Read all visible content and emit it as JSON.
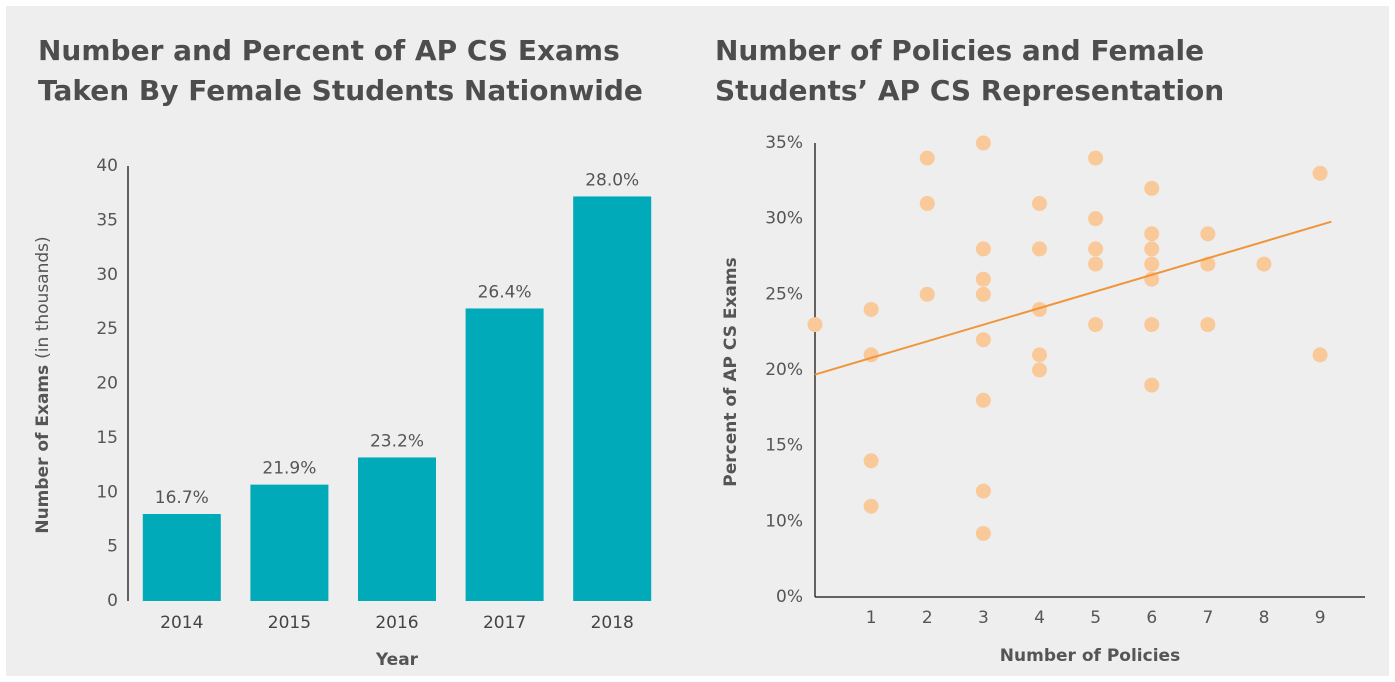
{
  "chart_data": [
    {
      "type": "bar",
      "title": [
        "Number and Percent of AP CS Exams",
        "Taken By Female Students Nationwide"
      ],
      "ylabel": "Number of Exams",
      "ylabel_note": "(in thousands)",
      "xlabel": "Year",
      "categories": [
        "2014",
        "2015",
        "2016",
        "2017",
        "2018"
      ],
      "values": [
        8.0,
        10.7,
        13.2,
        26.9,
        37.2
      ],
      "bar_labels": [
        "16.7%",
        "21.9%",
        "23.2%",
        "26.4%",
        "28.0%"
      ],
      "color": "#00aab9",
      "ylim": [
        0,
        40
      ],
      "yticks": [
        0,
        5,
        10,
        15,
        20,
        25,
        30,
        35,
        40
      ],
      "grid": false
    },
    {
      "type": "scatter",
      "title": [
        "Number of Policies and Female",
        "Students’ AP CS Representation"
      ],
      "ylabel": "Percent of AP CS Exams",
      "xlabel": "Number of Policies",
      "x": [
        0,
        1,
        1,
        1,
        1,
        2,
        2,
        2,
        3,
        3,
        3,
        3,
        3,
        3,
        3,
        3,
        4,
        4,
        4,
        4,
        4,
        5,
        5,
        5,
        5,
        5,
        6,
        6,
        6,
        6,
        6,
        6,
        6,
        7,
        7,
        7,
        8,
        9,
        9
      ],
      "values": [
        23,
        24,
        21,
        14,
        11,
        34,
        31,
        25,
        35,
        28,
        26,
        25,
        22,
        18,
        12,
        8.4,
        31,
        28,
        24,
        21,
        20,
        34,
        30,
        28,
        27,
        23,
        32,
        29,
        28,
        27,
        26,
        23,
        19,
        29,
        27,
        23,
        27,
        33,
        21
      ],
      "color": "#f9c999",
      "trendline": {
        "x": [
          0,
          9.2
        ],
        "values": [
          19.7,
          29.8
        ],
        "color": "#f0953b"
      },
      "xlim": [
        0,
        9.8
      ],
      "xticks": [
        1,
        2,
        3,
        4,
        5,
        6,
        7,
        8,
        9
      ],
      "ylim": [
        0,
        35
      ],
      "yticks": [
        {
          "value": 0,
          "label": "0%"
        },
        {
          "value": 10,
          "label": "10%"
        },
        {
          "value": 15,
          "label": "15%"
        },
        {
          "value": 20,
          "label": "20%"
        },
        {
          "value": 25,
          "label": "25%"
        },
        {
          "value": 30,
          "label": "30%"
        },
        {
          "value": 35,
          "label": "35%"
        }
      ],
      "grid": false
    }
  ]
}
